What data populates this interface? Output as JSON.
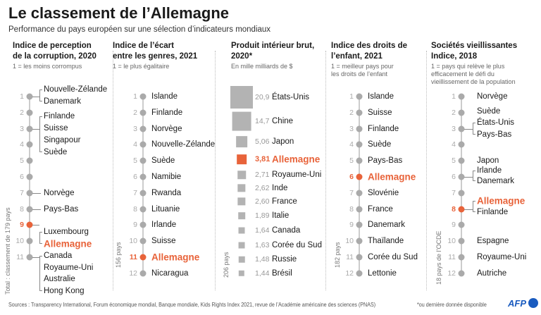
{
  "title": "Le classement de l’Allemagne",
  "subtitle": "Performance du pays européen sur une sélection d’indicateurs mondiaux",
  "highlight_color": "#e8633a",
  "chart_data": [
    {
      "type": "table",
      "title": "Indice de perception de la corruption, 2020",
      "subtitle": "1 = les moins corrompus",
      "total": "Total : classement de 179 pays",
      "ranks": [
        {
          "rank": 1,
          "names": [
            "Nouvelle-Zélande",
            "Danemark"
          ]
        },
        {
          "rank": 2,
          "names": []
        },
        {
          "rank": 3,
          "names": [
            "Finlande",
            "Suisse",
            "Singapour",
            "Suède"
          ]
        },
        {
          "rank": 4,
          "names": []
        },
        {
          "rank": 5,
          "names": []
        },
        {
          "rank": 6,
          "names": []
        },
        {
          "rank": 7,
          "names": [
            "Norvège"
          ]
        },
        {
          "rank": 8,
          "names": [
            "Pays-Bas"
          ]
        },
        {
          "rank": 9,
          "names": [
            "Luxembourg",
            "Allemagne"
          ],
          "highlight": true
        },
        {
          "rank": 10,
          "names": []
        },
        {
          "rank": 11,
          "names": [
            "Canada",
            "Royaume-Uni",
            "Australie",
            "Hong Kong"
          ]
        }
      ]
    },
    {
      "type": "table",
      "title": "Indice de l’écart entre les genres, 2021",
      "subtitle": "1 = le plus égalitaire",
      "total": "156 pays",
      "ranks": [
        {
          "rank": 1,
          "names": [
            "Islande"
          ]
        },
        {
          "rank": 2,
          "names": [
            "Finlande"
          ]
        },
        {
          "rank": 3,
          "names": [
            "Norvège"
          ]
        },
        {
          "rank": 4,
          "names": [
            "Nouvelle-Zélande"
          ]
        },
        {
          "rank": 5,
          "names": [
            "Suède"
          ]
        },
        {
          "rank": 6,
          "names": [
            "Namibie"
          ]
        },
        {
          "rank": 7,
          "names": [
            "Rwanda"
          ]
        },
        {
          "rank": 8,
          "names": [
            "Lituanie"
          ]
        },
        {
          "rank": 9,
          "names": [
            "Irlande"
          ]
        },
        {
          "rank": 10,
          "names": [
            "Suisse"
          ]
        },
        {
          "rank": 11,
          "names": [
            "Allemagne"
          ],
          "highlight": true
        },
        {
          "rank": 12,
          "names": [
            "Nicaragua"
          ]
        }
      ]
    },
    {
      "type": "bar",
      "title": "Produit intérieur brut, 2020*",
      "subtitle": "En mille milliards de $",
      "total": "206 pays",
      "categories": [
        "États-Unis",
        "Chine",
        "Japon",
        "Allemagne",
        "Royaume-Uni",
        "Inde",
        "France",
        "Italie",
        "Canada",
        "Corée du Sud",
        "Russie",
        "Brésil"
      ],
      "labels": [
        "20,9",
        "14,7",
        "5,06",
        "3,81",
        "2,71",
        "2,62",
        "2,60",
        "1,89",
        "1,64",
        "1,63",
        "1,48",
        "1,44"
      ],
      "values": [
        20.9,
        14.7,
        5.06,
        3.81,
        2.71,
        2.62,
        2.6,
        1.89,
        1.64,
        1.63,
        1.48,
        1.44
      ],
      "highlight_index": 3
    },
    {
      "type": "table",
      "title": "Indice des droits de l’enfant, 2021",
      "subtitle": "1 = meilleur pays pour les droits de l’enfant",
      "total": "182 pays",
      "ranks": [
        {
          "rank": 1,
          "names": [
            "Islande"
          ]
        },
        {
          "rank": 2,
          "names": [
            "Suisse"
          ]
        },
        {
          "rank": 3,
          "names": [
            "Finlande"
          ]
        },
        {
          "rank": 4,
          "names": [
            "Suède"
          ]
        },
        {
          "rank": 5,
          "names": [
            "Pays-Bas"
          ]
        },
        {
          "rank": 6,
          "names": [
            "Allemagne"
          ],
          "highlight": true
        },
        {
          "rank": 7,
          "names": [
            "Slovénie"
          ]
        },
        {
          "rank": 8,
          "names": [
            "France"
          ]
        },
        {
          "rank": 9,
          "names": [
            "Danemark"
          ]
        },
        {
          "rank": 10,
          "names": [
            "Thaïlande"
          ]
        },
        {
          "rank": 11,
          "names": [
            "Corée du Sud"
          ]
        },
        {
          "rank": 12,
          "names": [
            "Lettonie"
          ]
        }
      ]
    },
    {
      "type": "table",
      "title": "Sociétés vieillissantes Indice, 2018",
      "subtitle": "1 = pays qui relève le plus efficacement le défi du vieillissement de la population",
      "total": "18 pays de l’OCDE",
      "ranks": [
        {
          "rank": 1,
          "names": [
            "Norvège"
          ]
        },
        {
          "rank": 2,
          "names": [
            "Suède"
          ]
        },
        {
          "rank": 3,
          "names": [
            "États-Unis",
            "Pays-Bas"
          ]
        },
        {
          "rank": 4,
          "names": []
        },
        {
          "rank": 5,
          "names": [
            "Japon"
          ]
        },
        {
          "rank": 6,
          "names": [
            "Irlande",
            "Danemark"
          ]
        },
        {
          "rank": 7,
          "names": []
        },
        {
          "rank": 8,
          "names": [
            "Allemagne",
            "Finlande"
          ],
          "highlight": true
        },
        {
          "rank": 9,
          "names": []
        },
        {
          "rank": 10,
          "names": [
            "Espagne"
          ]
        },
        {
          "rank": 11,
          "names": [
            "Royaume-Uni"
          ]
        },
        {
          "rank": 12,
          "names": [
            "Autriche"
          ]
        }
      ]
    }
  ],
  "columns_header": [
    {
      "title_lines": [
        "Indice de perception",
        "de la corruption, 2020"
      ],
      "subtitle_lines": [
        "1 = les moins corrompus"
      ]
    },
    {
      "title_lines": [
        "Indice de l’écart",
        "entre les genres, 2021"
      ],
      "subtitle_lines": [
        "1 = le plus égalitaire"
      ]
    },
    {
      "title_lines": [
        "Produit intérieur brut,",
        "2020*"
      ],
      "subtitle_lines": [
        "En mille milliards de $"
      ]
    },
    {
      "title_lines": [
        "Indice des droits de",
        "l’enfant, 2021"
      ],
      "subtitle_lines": [
        "1 = meilleur pays pour",
        "les droits de l’enfant"
      ]
    },
    {
      "title_lines": [
        "Sociétés vieillissantes",
        "Indice, 2018"
      ],
      "subtitle_lines": [
        "1 = pays qui relève le plus",
        "efficacement le défi du",
        "vieillissement de la population"
      ]
    }
  ],
  "footer": {
    "sources": "Sources : Transparency International, Forum économique mondial, Banque mondiale, Kids Rights Index 2021, revue de l’Académie américaine des sciences (PNAS)",
    "note": "*ou dernière donnée disponible",
    "logo": "AFP"
  }
}
